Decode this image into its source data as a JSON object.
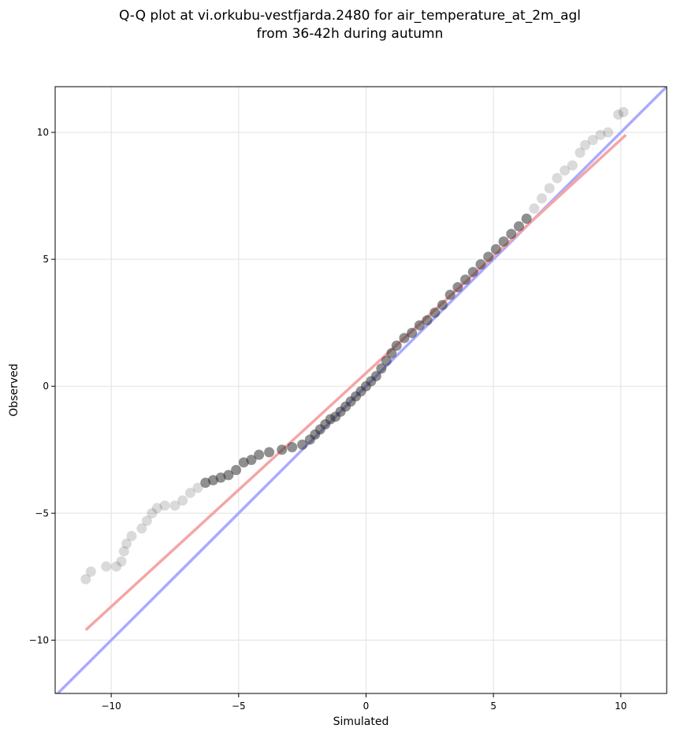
{
  "chart_data": {
    "type": "scatter",
    "title_lines": [
      "Q-Q plot at vi.orkubu-vestfjarda.2480 for air_temperature_at_2m_agl",
      "from 36-42h during autumn"
    ],
    "xlabel": "Simulated",
    "ylabel": "Observed",
    "xlim": [
      -12.2,
      11.8
    ],
    "ylim": [
      -12.1,
      11.8
    ],
    "x_ticks": [
      -10,
      -5,
      0,
      5,
      10
    ],
    "y_ticks": [
      -10,
      -5,
      0,
      5,
      10
    ],
    "x_tick_labels": [
      "−10",
      "−5",
      "0",
      "5",
      "10"
    ],
    "y_tick_labels": [
      "−10",
      "−5",
      "0",
      "5",
      "10"
    ],
    "grid": true,
    "reference_line": {
      "color": "#aaaaff",
      "from": [
        -12.2,
        -12.2
      ],
      "to": [
        11.8,
        11.8
      ]
    },
    "fit_line": {
      "color": "#f4a6a6",
      "from": [
        -11.0,
        -9.6
      ],
      "to": [
        10.2,
        9.9
      ]
    },
    "series_color": "#333333",
    "points": [
      [
        -11.0,
        -7.6
      ],
      [
        -10.8,
        -7.3
      ],
      [
        -10.2,
        -7.1
      ],
      [
        -9.8,
        -7.1
      ],
      [
        -9.6,
        -6.9
      ],
      [
        -9.5,
        -6.5
      ],
      [
        -9.4,
        -6.2
      ],
      [
        -9.2,
        -5.9
      ],
      [
        -8.8,
        -5.6
      ],
      [
        -8.6,
        -5.3
      ],
      [
        -8.4,
        -5.0
      ],
      [
        -8.2,
        -4.8
      ],
      [
        -7.9,
        -4.7
      ],
      [
        -7.5,
        -4.7
      ],
      [
        -7.2,
        -4.5
      ],
      [
        -6.9,
        -4.2
      ],
      [
        -6.6,
        -4.0
      ],
      [
        -6.3,
        -3.8
      ],
      [
        -6.0,
        -3.7
      ],
      [
        -5.7,
        -3.6
      ],
      [
        -5.4,
        -3.5
      ],
      [
        -5.1,
        -3.3
      ],
      [
        -4.8,
        -3.0
      ],
      [
        -4.5,
        -2.9
      ],
      [
        -4.2,
        -2.7
      ],
      [
        -3.8,
        -2.6
      ],
      [
        -3.3,
        -2.5
      ],
      [
        -2.9,
        -2.4
      ],
      [
        -2.5,
        -2.3
      ],
      [
        -2.2,
        -2.1
      ],
      [
        -2.0,
        -1.9
      ],
      [
        -1.8,
        -1.7
      ],
      [
        -1.6,
        -1.5
      ],
      [
        -1.4,
        -1.3
      ],
      [
        -1.2,
        -1.2
      ],
      [
        -1.0,
        -1.0
      ],
      [
        -0.8,
        -0.8
      ],
      [
        -0.6,
        -0.6
      ],
      [
        -0.4,
        -0.4
      ],
      [
        -0.2,
        -0.2
      ],
      [
        0.0,
        0.0
      ],
      [
        0.2,
        0.2
      ],
      [
        0.4,
        0.4
      ],
      [
        0.6,
        0.7
      ],
      [
        0.8,
        1.0
      ],
      [
        1.0,
        1.3
      ],
      [
        1.2,
        1.6
      ],
      [
        1.5,
        1.9
      ],
      [
        1.8,
        2.1
      ],
      [
        2.1,
        2.4
      ],
      [
        2.4,
        2.6
      ],
      [
        2.7,
        2.9
      ],
      [
        3.0,
        3.2
      ],
      [
        3.3,
        3.6
      ],
      [
        3.6,
        3.9
      ],
      [
        3.9,
        4.2
      ],
      [
        4.2,
        4.5
      ],
      [
        4.5,
        4.8
      ],
      [
        4.8,
        5.1
      ],
      [
        5.1,
        5.4
      ],
      [
        5.4,
        5.7
      ],
      [
        5.7,
        6.0
      ],
      [
        6.0,
        6.3
      ],
      [
        6.3,
        6.6
      ],
      [
        6.6,
        7.0
      ],
      [
        6.9,
        7.4
      ],
      [
        7.2,
        7.8
      ],
      [
        7.5,
        8.2
      ],
      [
        7.8,
        8.5
      ],
      [
        8.1,
        8.7
      ],
      [
        8.4,
        9.2
      ],
      [
        8.6,
        9.5
      ],
      [
        8.9,
        9.7
      ],
      [
        9.2,
        9.9
      ],
      [
        9.5,
        10.0
      ],
      [
        9.9,
        10.7
      ],
      [
        10.1,
        10.8
      ]
    ]
  }
}
